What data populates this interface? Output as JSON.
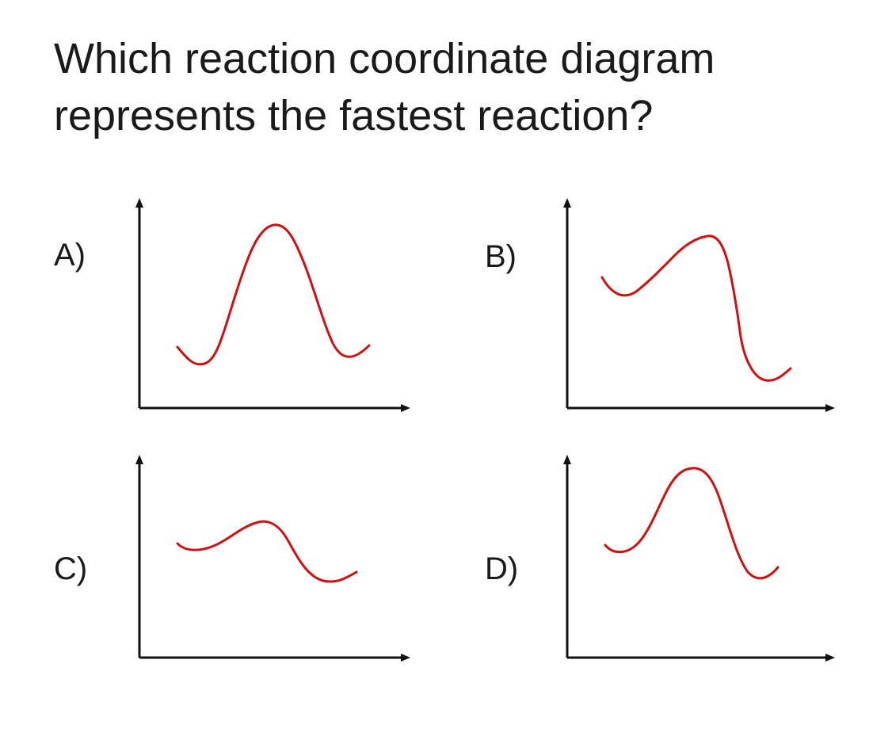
{
  "question": {
    "line1": "Which reaction coordinate diagram",
    "line2": "represents the fastest reaction?"
  },
  "options": [
    {
      "label": "A)"
    },
    {
      "label": "B)"
    },
    {
      "label": "C)"
    },
    {
      "label": "D)"
    }
  ],
  "colors": {
    "curve": "#d01010",
    "axis": "#111111",
    "text": "#1a1a1a"
  }
}
